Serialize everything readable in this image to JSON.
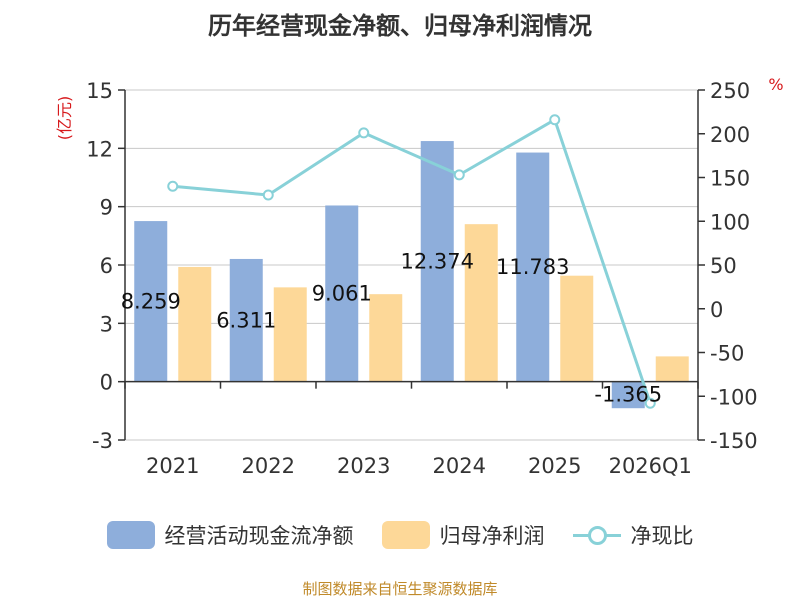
{
  "chart_data": {
    "type": "bar",
    "title": "历年经营现金净额、归母净利润情况",
    "categories": [
      "2021",
      "2022",
      "2023",
      "2024",
      "2025",
      "2026Q1"
    ],
    "series": [
      {
        "name": "经营活动现金流净额",
        "type": "bar",
        "axis": "left",
        "values": [
          8.259,
          6.311,
          9.061,
          12.374,
          11.783,
          -1.365
        ],
        "color": "#8eaedb"
      },
      {
        "name": "归母净利润",
        "type": "bar",
        "axis": "left",
        "values": [
          5.9,
          4.85,
          4.5,
          8.1,
          5.45,
          1.3
        ],
        "color": "#fdd898"
      },
      {
        "name": "净现比",
        "type": "line",
        "axis": "right",
        "values": [
          140,
          130,
          201,
          153,
          216,
          -108
        ],
        "color": "#88d1d8"
      }
    ],
    "data_labels": [
      "8.259",
      "6.311",
      "9.061",
      "12.374",
      "11.783",
      "-1.365"
    ],
    "y_left": {
      "label": "(亿元)",
      "min": -3,
      "max": 15,
      "ticks": [
        "-3",
        "0",
        "3",
        "6",
        "9",
        "12",
        "15"
      ]
    },
    "y_right": {
      "label": "%",
      "min": -150,
      "max": 250,
      "ticks": [
        "-150",
        "-100",
        "-50",
        "0",
        "50",
        "100",
        "150",
        "200",
        "250"
      ]
    },
    "grid": true,
    "legend": "bottom"
  },
  "source": "制图数据来自恒生聚源数据库"
}
